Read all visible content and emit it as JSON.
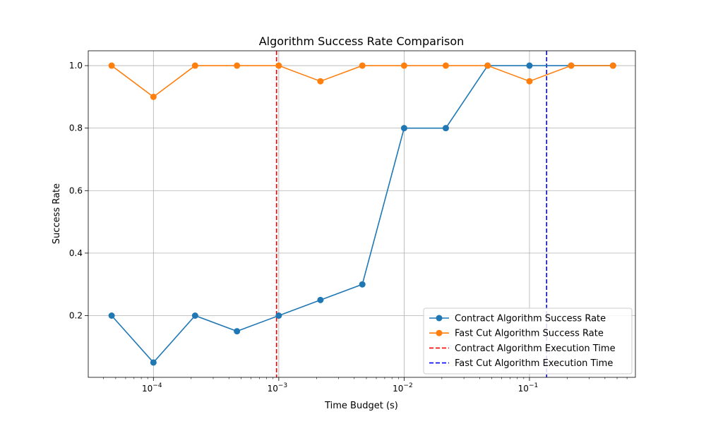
{
  "chart_data": {
    "type": "line",
    "title": "Algorithm Success Rate Comparison",
    "xlabel": "Time Budget (s)",
    "ylabel": "Success Rate",
    "x_scale": "log",
    "x_ticks": [
      {
        "value": 0.0001,
        "base": "10",
        "exp": "−4"
      },
      {
        "value": 0.001,
        "base": "10",
        "exp": "−3"
      },
      {
        "value": 0.01,
        "base": "10",
        "exp": "−2"
      },
      {
        "value": 0.1,
        "base": "10",
        "exp": "−1"
      }
    ],
    "y_ticks": [
      "0.2",
      "0.4",
      "0.6",
      "0.8",
      "1.0"
    ],
    "xlim": [
      3.02e-05,
      0.7
    ],
    "ylim": [
      0.0025,
      1.0475
    ],
    "grid": true,
    "legend_position": "lower-right",
    "x": [
      4.64e-05,
      0.0001,
      0.000215,
      0.000464,
      0.001,
      0.00215,
      0.00464,
      0.01,
      0.0215,
      0.0464,
      0.1,
      0.215,
      0.464
    ],
    "series": [
      {
        "name": "Contract Algorithm Success Rate",
        "color": "#1f77b4",
        "values": [
          0.2,
          0.05,
          0.2,
          0.15,
          0.2,
          0.25,
          0.3,
          0.8,
          0.8,
          1.0,
          1.0,
          1.0,
          1.0
        ]
      },
      {
        "name": "Fast Cut Algorithm Success Rate",
        "color": "#ff7f0e",
        "values": [
          1.0,
          0.9,
          1.0,
          1.0,
          1.0,
          0.95,
          1.0,
          1.0,
          1.0,
          1.0,
          0.95,
          1.0,
          1.0
        ]
      }
    ],
    "vlines": [
      {
        "name": "Contract Algorithm Execution Time",
        "x": 0.00096,
        "color": "#ff0000"
      },
      {
        "name": "Fast Cut Algorithm Execution Time",
        "x": 0.137,
        "color": "#0000ff"
      }
    ]
  }
}
